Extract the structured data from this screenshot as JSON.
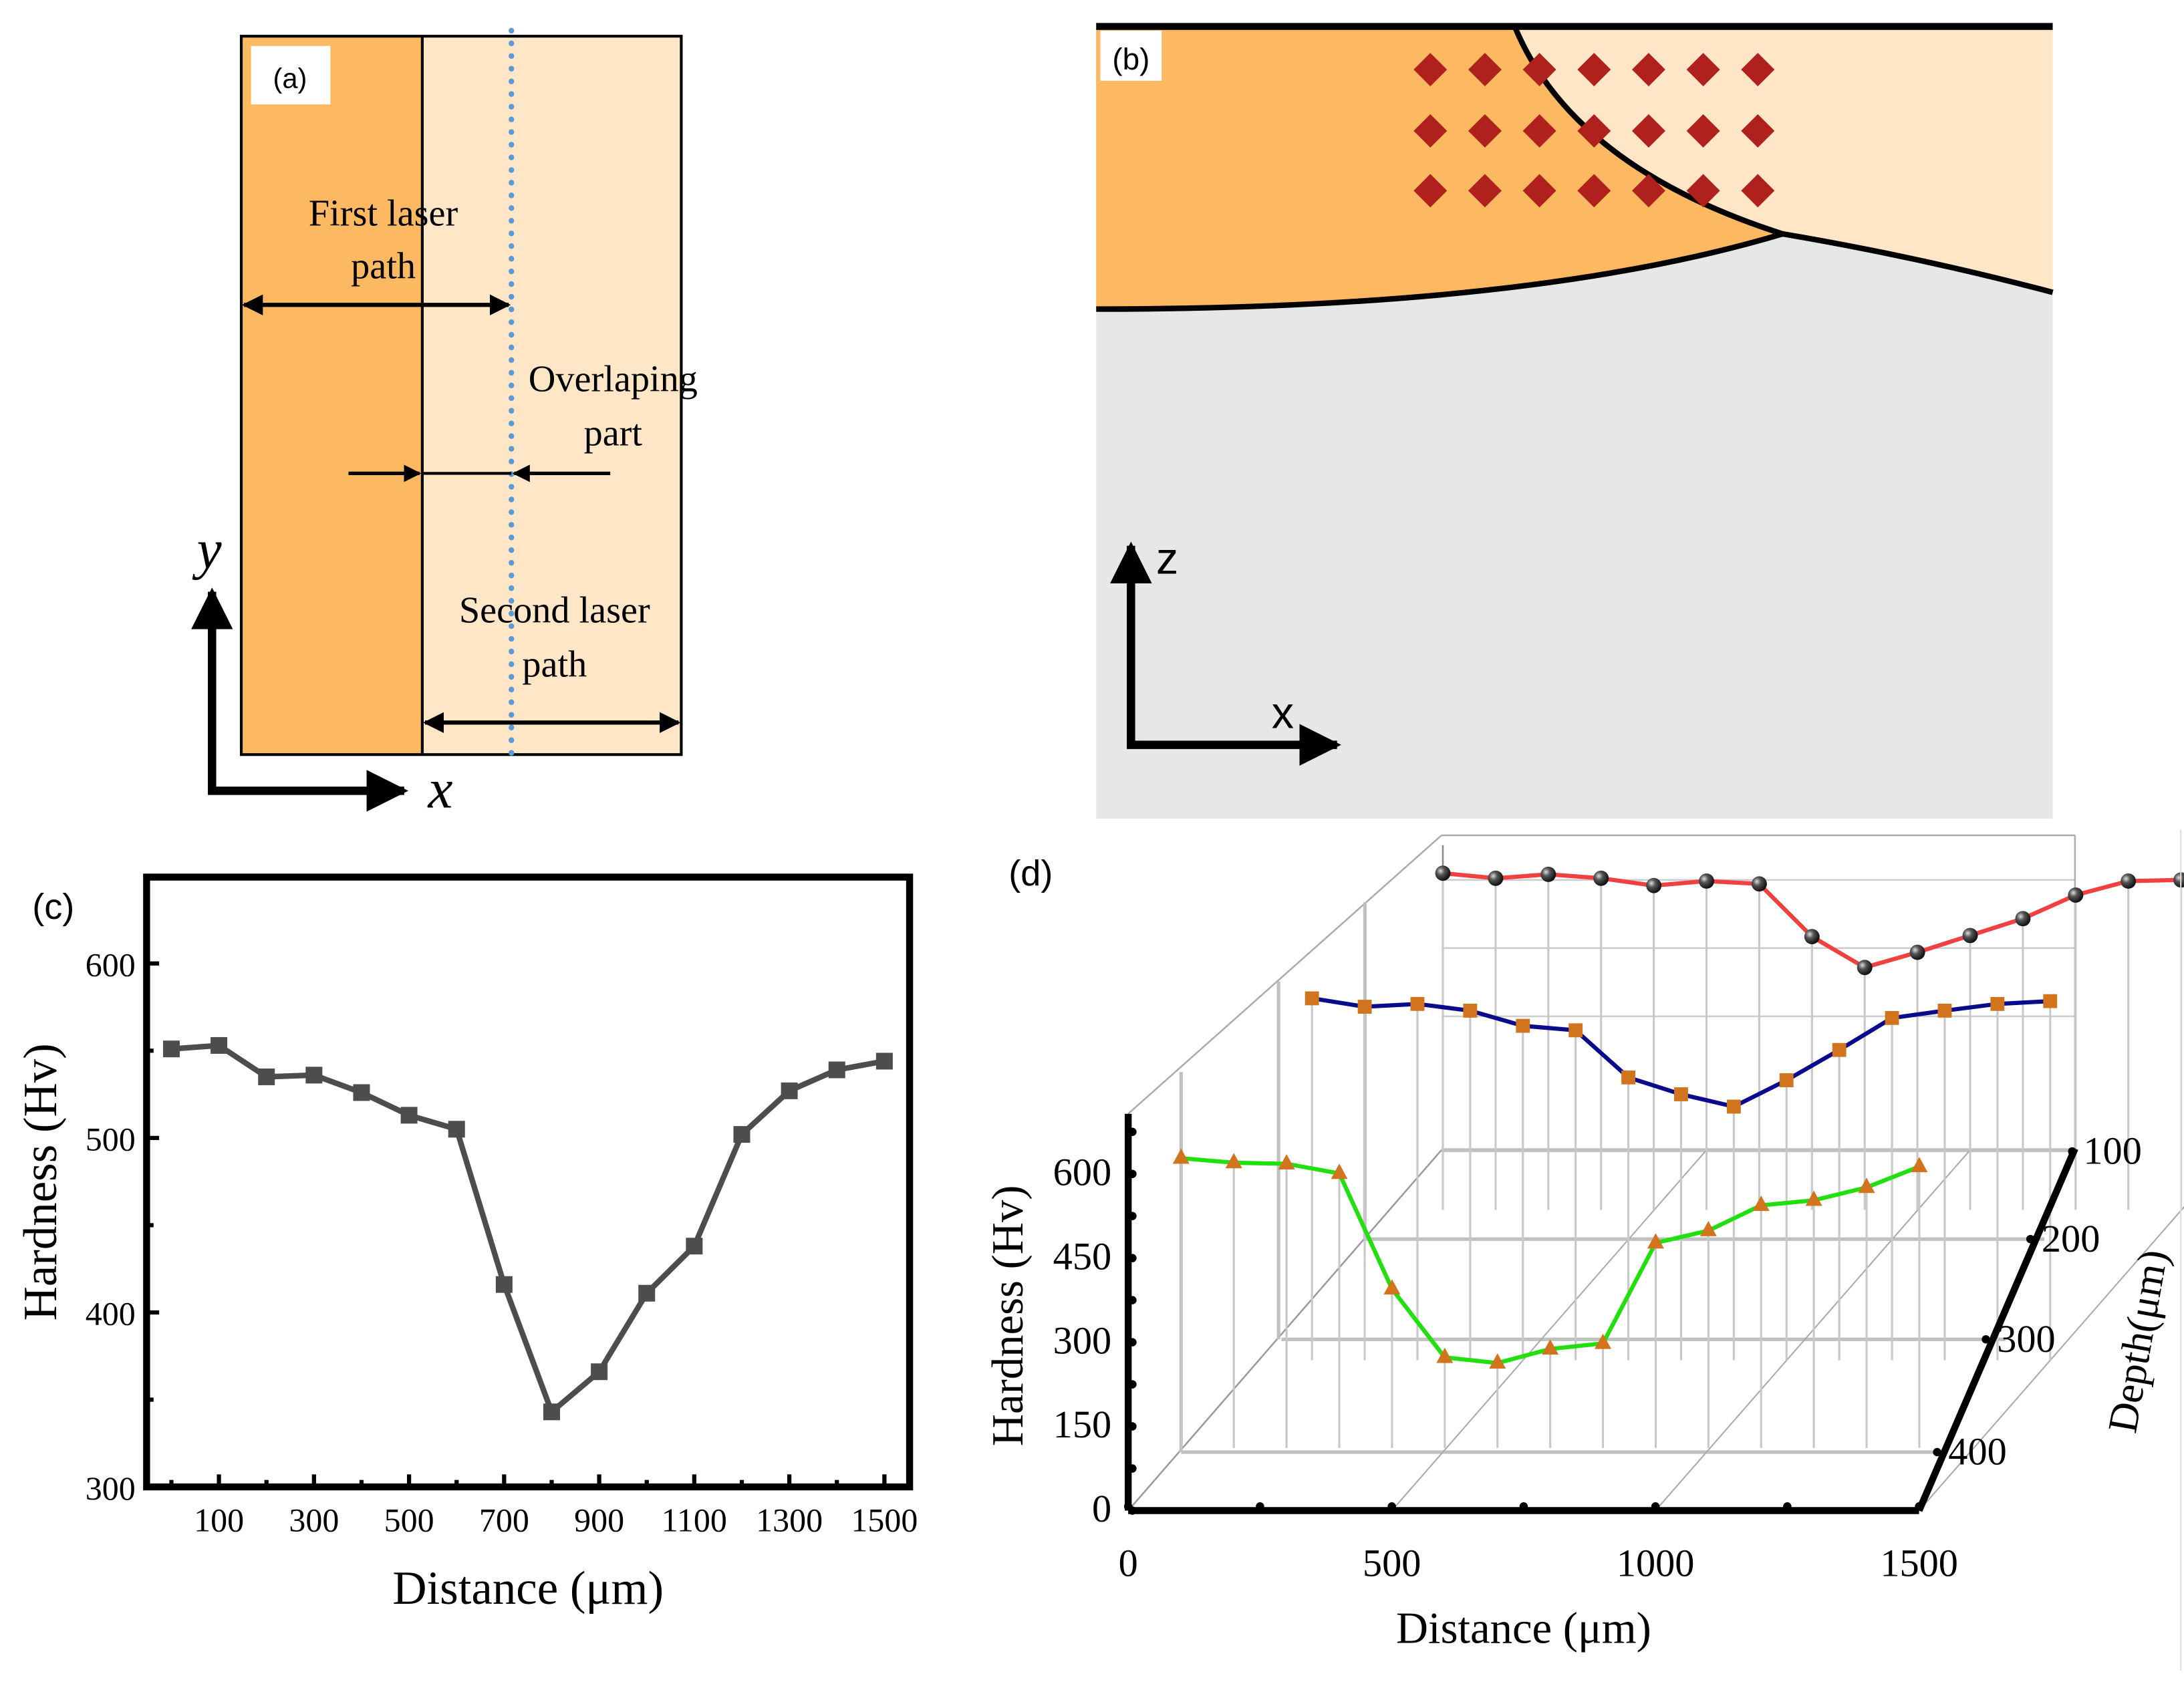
{
  "panel_a": {
    "label": "(a)",
    "first_path": [
      "First laser",
      "path"
    ],
    "overlap": [
      "Overlaping",
      "part"
    ],
    "second_path": [
      "Second laser",
      "path"
    ],
    "axis_x": "x",
    "axis_y": "y",
    "colors": {
      "first": "#FDB862",
      "second": "#FEE6C6",
      "dots": "#5B9BD5"
    }
  },
  "panel_b": {
    "label": "(b)",
    "axis_x": "x",
    "axis_z": "z",
    "colors": {
      "first": "#FDB862",
      "second": "#FEE6C6",
      "substrate": "#E6E7E7",
      "marker": "#B0201C"
    }
  },
  "chart_data": [
    {
      "panel": "(c)",
      "type": "line",
      "xlabel": "Distance (μm)",
      "ylabel": "Hardness (Hv)",
      "xlim": [
        -30,
        1550
      ],
      "ylim": [
        300,
        650
      ],
      "xticks": [
        "100",
        "300",
        "500",
        "700",
        "900",
        "1100",
        "1300",
        "1500"
      ],
      "yticks": [
        "300",
        "400",
        "500",
        "600"
      ],
      "x": [
        0,
        100,
        200,
        300,
        400,
        500,
        600,
        700,
        800,
        900,
        1000,
        1100,
        1200,
        1300,
        1400,
        1500
      ],
      "values": [
        551,
        553,
        535,
        536,
        526,
        513,
        505,
        416,
        343,
        366,
        411,
        438,
        502,
        527,
        539,
        544
      ],
      "color": "#4D4D4D",
      "marker": "square",
      "grid": false
    },
    {
      "panel": "(d)",
      "type": "line3d",
      "xlabel": "Distance (μm)",
      "ylabel": "Hardness (Hv)",
      "zlabel": "Depth(μm)",
      "xticks": [
        "0",
        "500",
        "1000",
        "1500"
      ],
      "yticks": [
        "0",
        "150",
        "300",
        "450",
        "600"
      ],
      "zticks": [
        "100",
        "200",
        "300",
        "400"
      ],
      "x": [
        0,
        100,
        200,
        300,
        400,
        500,
        600,
        700,
        800,
        900,
        1000,
        1100,
        1200,
        1300,
        1400
      ],
      "grid": true,
      "series": [
        {
          "depth": 100,
          "color": "#F04040",
          "marker": "sphere",
          "values": [
            600,
            591,
            598,
            591,
            578,
            586,
            581,
            487,
            432,
            459,
            489,
            519,
            561,
            586,
            588
          ]
        },
        {
          "depth": 200,
          "color": "#0A0A8C",
          "marker": "square",
          "values": [
            645,
            630,
            635,
            623,
            596,
            588,
            504,
            474,
            452,
            499,
            553,
            610,
            623,
            635,
            640
          ]
        },
        {
          "depth": 300,
          "color": "#22E010",
          "marker": "triangle",
          "values": [
            628,
            620,
            618,
            601,
            395,
            273,
            263,
            288,
            298,
            477,
            499,
            544,
            553,
            576,
            613
          ]
        }
      ]
    }
  ],
  "panel_c": {
    "label": "(c)"
  },
  "panel_d": {
    "label": "(d)"
  }
}
